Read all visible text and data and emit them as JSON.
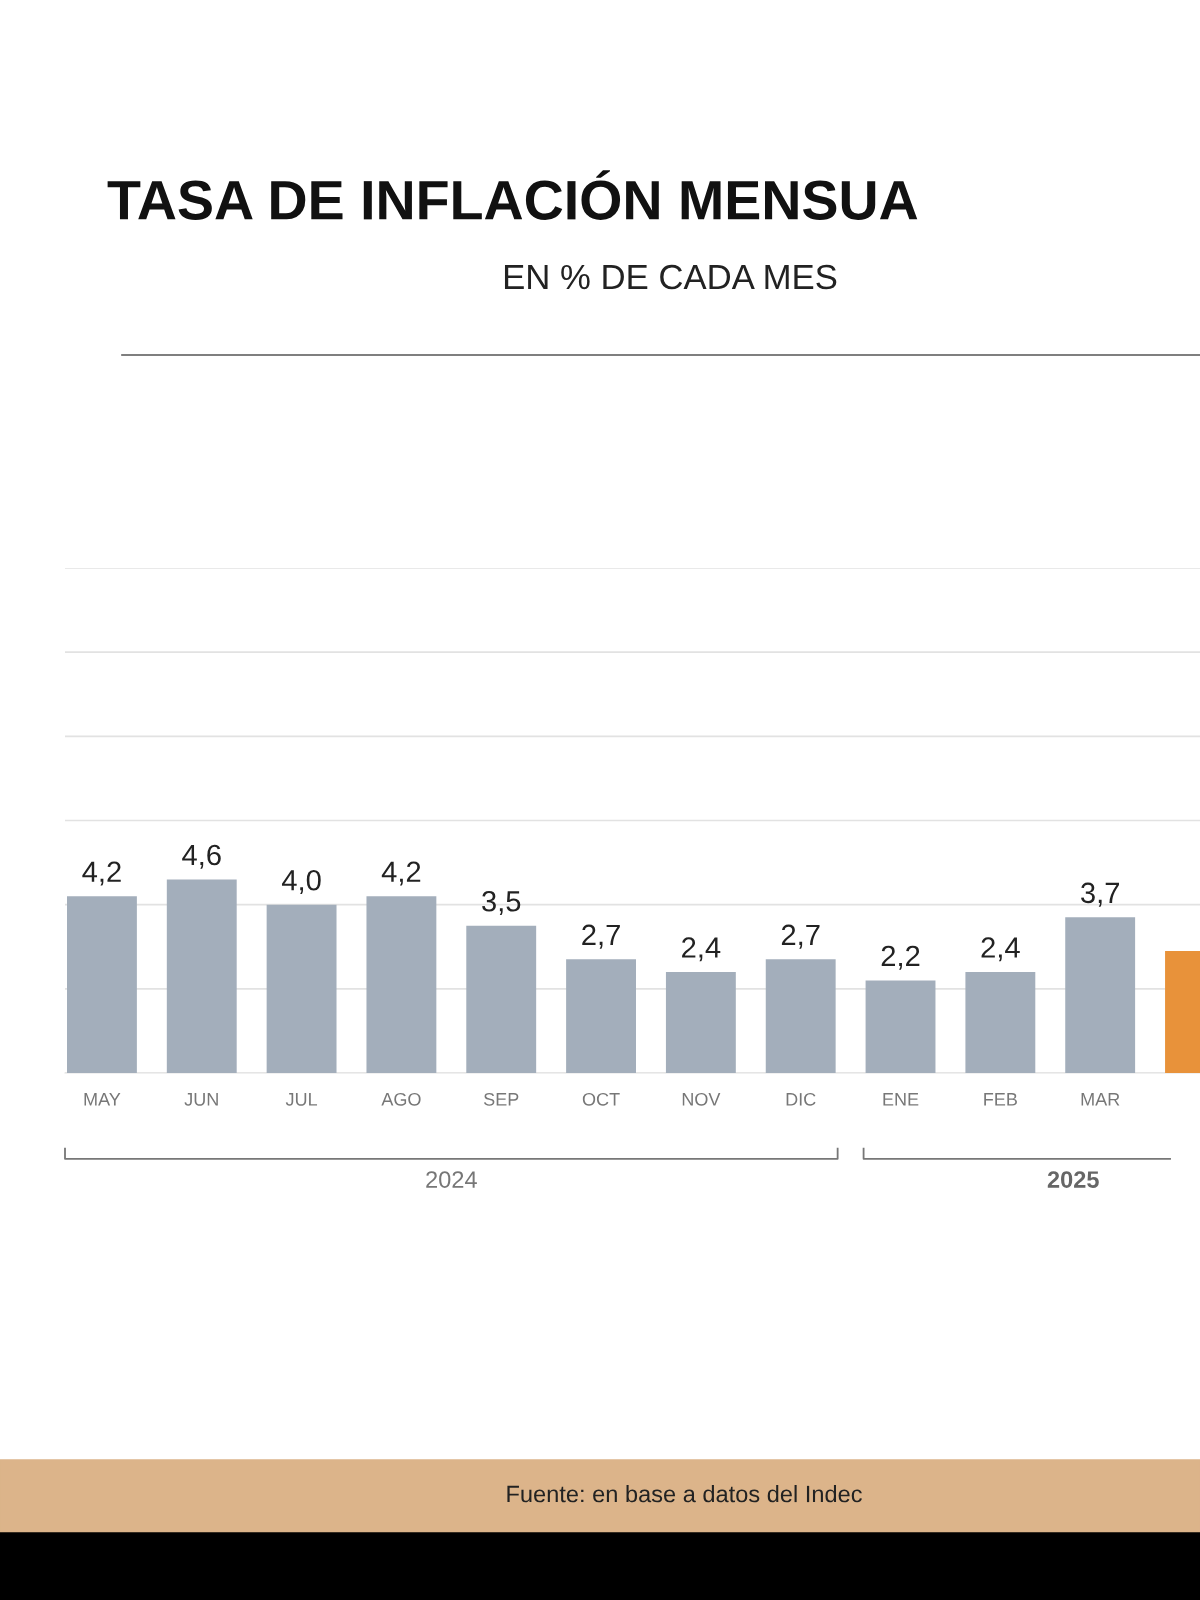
{
  "chart_data": {
    "type": "bar",
    "title": "TASA DE INFLACIÓN MENSUA",
    "subtitle": "EN % DE CADA MES",
    "categories": [
      "MAY",
      "JUN",
      "JUL",
      "AGO",
      "SEP",
      "OCT",
      "NOV",
      "DIC",
      "ENE",
      "FEB",
      "MAR",
      null
    ],
    "values": [
      4.2,
      4.6,
      4.0,
      4.2,
      3.5,
      2.7,
      2.4,
      2.7,
      2.2,
      2.4,
      3.7,
      2.9
    ],
    "colors": [
      "#a3aebb",
      "#a3aebb",
      "#a3aebb",
      "#a3aebb",
      "#a3aebb",
      "#a3aebb",
      "#a3aebb",
      "#a3aebb",
      "#a3aebb",
      "#a3aebb",
      "#a3aebb",
      "#e8923a"
    ],
    "value_labels": [
      "4,2",
      "4,6",
      "4,0",
      "4,2",
      "3,5",
      "2,7",
      "2,4",
      "2,7",
      "2,2",
      "2,4",
      "3,7",
      null
    ],
    "ylim": [
      0,
      12
    ],
    "yticks": [
      {
        "value": 0,
        "label": null
      },
      {
        "value": 2,
        "label": null
      },
      {
        "value": 4,
        "label": null
      },
      {
        "value": 6,
        "label": null
      },
      {
        "value": 8,
        "label": null
      },
      {
        "value": 10,
        "label": null
      },
      {
        "value": 12,
        "label": null
      }
    ],
    "tick_labels": "x",
    "grid": "y",
    "legend": false,
    "annotations": [
      "2024",
      "2025",
      "Fuente: en base a datos del Indec"
    ]
  }
}
